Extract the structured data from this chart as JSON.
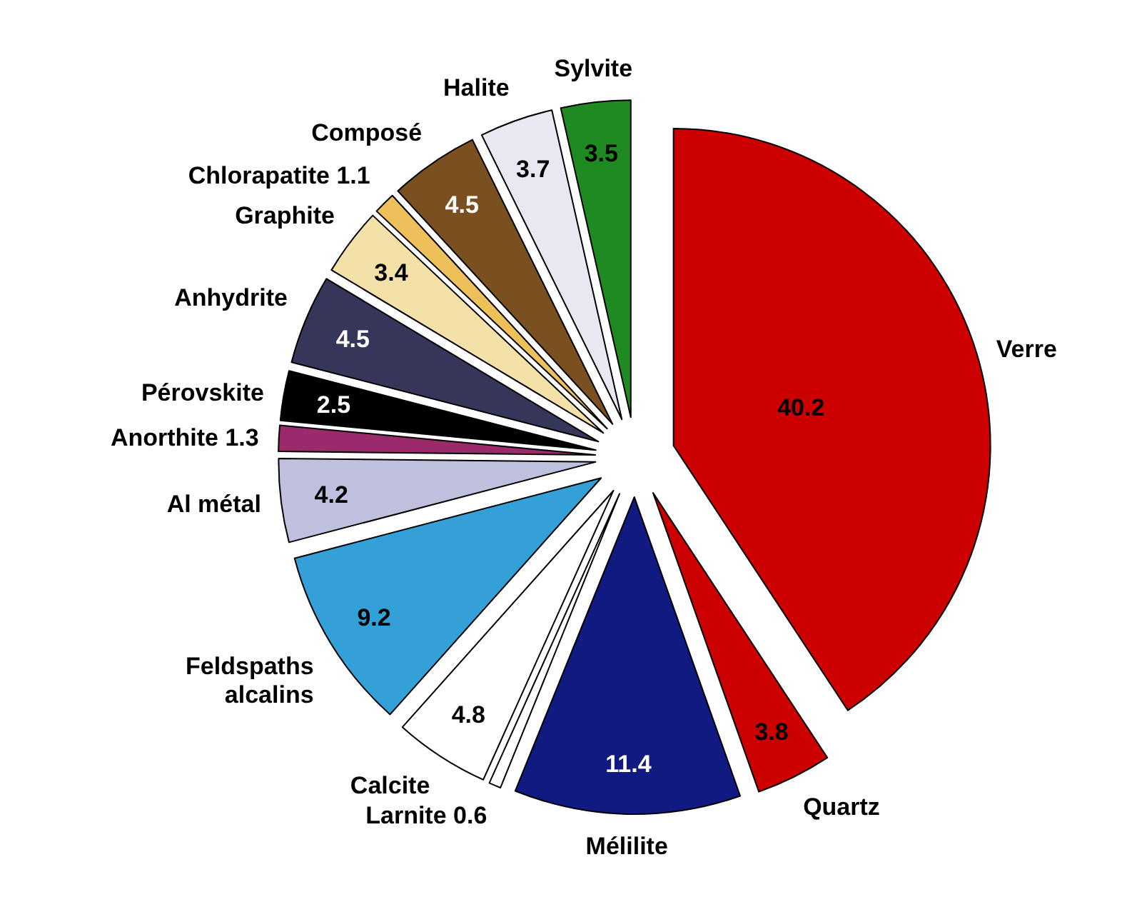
{
  "chart_data": {
    "type": "pie",
    "categories": [
      "Verre",
      "Quartz",
      "Mélilite",
      "Larnite",
      "Calcite",
      "Feldspaths alcalins",
      "Al métal",
      "Anorthite",
      "Pérovskite",
      "Anhydrite",
      "Graphite",
      "Chlorapatite",
      "Composé",
      "Halite",
      "Sylvite"
    ],
    "values": [
      40.2,
      3.8,
      11.4,
      0.6,
      4.8,
      9.2,
      4.2,
      1.3,
      2.5,
      4.5,
      3.4,
      1.1,
      4.5,
      3.7,
      3.5
    ],
    "colors": [
      "#cc0000",
      "#cc0000",
      "#101a80",
      "#ffffff",
      "#ffffff",
      "#33a0d8",
      "#bfc0de",
      "#9a2a6a",
      "#000000",
      "#35365a",
      "#f4e1a8",
      "#eec05a",
      "#7b5020",
      "#e8e8f2",
      "#1f8a22"
    ],
    "data_labels": true
  }
}
